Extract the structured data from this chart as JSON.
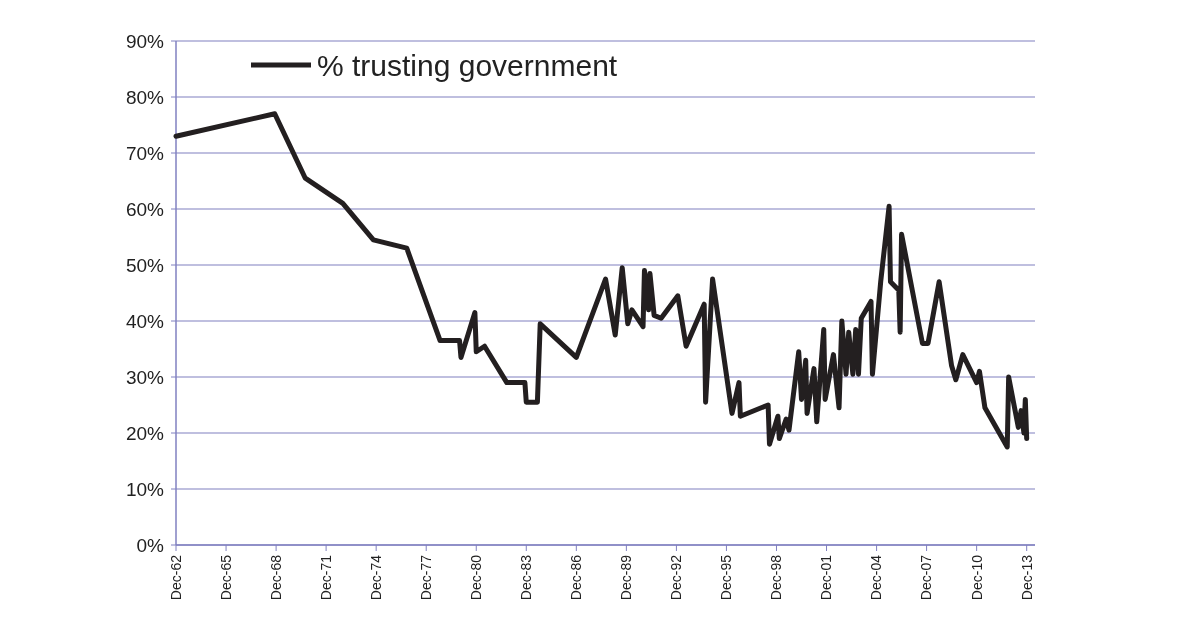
{
  "chart_data": {
    "type": "line",
    "legend": "top left",
    "grid": "y",
    "line_style": "solid",
    "xlim": [
      "1962-12",
      "2014-06"
    ],
    "xticks": [
      {
        "value": "1962-12",
        "label": "Dec-62"
      },
      {
        "value": "1965-12",
        "label": "Dec-65"
      },
      {
        "value": "1968-12",
        "label": "Dec-68"
      },
      {
        "value": "1971-12",
        "label": "Dec-71"
      },
      {
        "value": "1974-12",
        "label": "Dec-74"
      },
      {
        "value": "1977-12",
        "label": "Dec-77"
      },
      {
        "value": "1980-12",
        "label": "Dec-80"
      },
      {
        "value": "1983-12",
        "label": "Dec-83"
      },
      {
        "value": "1986-12",
        "label": "Dec-86"
      },
      {
        "value": "1989-12",
        "label": "Dec-89"
      },
      {
        "value": "1992-12",
        "label": "Dec-92"
      },
      {
        "value": "1995-12",
        "label": "Dec-95"
      },
      {
        "value": "1998-12",
        "label": "Dec-98"
      },
      {
        "value": "2001-12",
        "label": "Dec-01"
      },
      {
        "value": "2004-12",
        "label": "Dec-04"
      },
      {
        "value": "2007-12",
        "label": "Dec-07"
      },
      {
        "value": "2010-12",
        "label": "Dec-10"
      },
      {
        "value": "2013-12",
        "label": "Dec-13"
      }
    ],
    "ylim": [
      0,
      90
    ],
    "yticks": [
      {
        "value": 0,
        "label": "0%"
      },
      {
        "value": 10,
        "label": "10%"
      },
      {
        "value": 20,
        "label": "20%"
      },
      {
        "value": 30,
        "label": "30%"
      },
      {
        "value": 40,
        "label": "40%"
      },
      {
        "value": 50,
        "label": "50%"
      },
      {
        "value": 60,
        "label": "60%"
      },
      {
        "value": 70,
        "label": "70%"
      },
      {
        "value": 80,
        "label": "80%"
      },
      {
        "value": 90,
        "label": "90%"
      }
    ],
    "x": [
      "1962-12",
      "1968-11",
      "1970-09",
      "1972-12",
      "1974-10",
      "1976-10",
      "1978-10",
      "1979-12",
      "1980-01",
      "1980-11",
      "1980-12",
      "1981-06",
      "1982-10",
      "1983-11",
      "1983-12",
      "1984-08",
      "1984-10",
      "1986-12",
      "1988-09",
      "1989-04",
      "1989-09",
      "1990-01",
      "1990-04",
      "1990-12",
      "1991-01",
      "1991-04",
      "1991-05",
      "1991-08",
      "1992-01",
      "1993-01",
      "1993-07",
      "1994-08",
      "1994-09",
      "1995-02",
      "1996-04",
      "1996-09",
      "1996-10",
      "1998-06",
      "1998-07",
      "1999-01",
      "1999-02",
      "1999-07",
      "1999-09",
      "2000-04",
      "2000-06",
      "2000-09",
      "2000-10",
      "2001-03",
      "2001-05",
      "2001-10",
      "2001-11",
      "2002-05",
      "2002-09",
      "2002-11",
      "2003-02",
      "2003-04",
      "2003-07",
      "2003-09",
      "2003-11",
      "2004-01",
      "2004-08",
      "2004-09",
      "2005-03",
      "2005-09",
      "2005-10",
      "2006-04",
      "2006-05",
      "2006-06",
      "2007-09",
      "2008-01",
      "2008-09",
      "2009-06",
      "2009-09",
      "2010-02",
      "2010-12",
      "2011-02",
      "2011-06",
      "2012-10",
      "2012-11",
      "2013-06",
      "2013-08",
      "2013-10",
      "2013-11",
      "2013-12"
    ],
    "series": [
      {
        "name": "% trusting government",
        "color": "#231f20",
        "values": [
          73,
          77,
          65.5,
          61,
          54.5,
          53,
          36.5,
          36.5,
          33.5,
          41.5,
          34.5,
          35.5,
          29,
          29,
          25.5,
          25.5,
          39.5,
          33.5,
          47.5,
          37.5,
          49.5,
          39.5,
          42,
          39,
          49,
          42,
          48.5,
          41,
          40.5,
          44.5,
          35.5,
          43,
          25.5,
          47.5,
          23.5,
          29,
          23,
          25,
          18,
          23,
          19,
          22.5,
          20.5,
          34.5,
          26,
          33,
          23.5,
          31.5,
          22,
          38.5,
          26,
          34,
          24.5,
          40,
          30.5,
          38,
          30.5,
          38.5,
          30.5,
          40.5,
          43.5,
          30.5,
          47,
          60.5,
          47,
          45.5,
          38,
          55.5,
          36,
          36,
          47,
          32,
          29.5,
          34,
          29,
          31,
          24.5,
          17.5,
          30,
          21,
          24,
          20,
          26,
          19
        ]
      }
    ]
  }
}
